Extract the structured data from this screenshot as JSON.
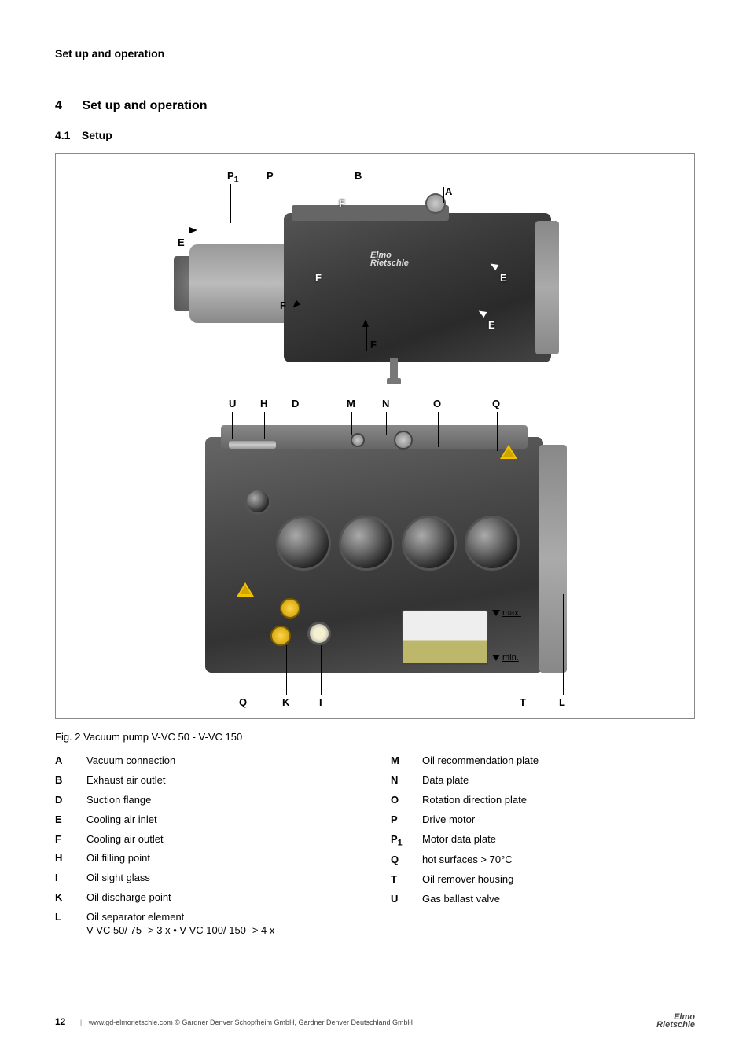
{
  "page": {
    "running_head": "Set up and operation",
    "section_number": "4",
    "section_title": "Set up and operation",
    "subsection_number": "4.1",
    "subsection_title": "Setup",
    "figure_caption": "Fig. 2   Vacuum pump  V-VC 50 - V-VC 150",
    "page_number": "12",
    "footer_url": "www.gd-elmorietschle.com",
    "footer_copyright": "© Gardner Denver Schopfheim GmbH, Gardner Denver Deutschland GmbH",
    "brand_top": "Elmo",
    "brand_bottom": "Rietschle"
  },
  "figure": {
    "top_labels": {
      "P1": "P",
      "P1_sub": "1",
      "P": "P",
      "B": "B",
      "A": "A",
      "E": "E",
      "F": "F",
      "E2": "E",
      "E3": "E",
      "F2": "F",
      "F3": "F",
      "F4": "F"
    },
    "bottom_labels_top": [
      "U",
      "H",
      "D",
      "M",
      "N",
      "O",
      "Q"
    ],
    "bottom_labels_bot": [
      "Q",
      "K",
      "I",
      "T",
      "L"
    ],
    "max_label": "max.",
    "min_label": "min."
  },
  "legend_left": [
    {
      "k": "A",
      "d": "Vacuum connection"
    },
    {
      "k": "B",
      "d": "Exhaust air outlet"
    },
    {
      "k": "D",
      "d": "Suction flange"
    },
    {
      "k": "E",
      "d": "Cooling air inlet"
    },
    {
      "k": "F",
      "d": "Cooling air outlet"
    },
    {
      "k": "H",
      "d": "Oil filling point"
    },
    {
      "k": "I",
      "d": "Oil sight glass"
    },
    {
      "k": "K",
      "d": "Oil discharge point"
    },
    {
      "k": "L",
      "d": "Oil separator element\nV-VC 50/ 75 -> 3 x   •   V-VC 100/ 150 -> 4 x"
    }
  ],
  "legend_right": [
    {
      "k": "M",
      "d": "Oil recommendation plate"
    },
    {
      "k": "N",
      "d": "Data plate"
    },
    {
      "k": "O",
      "d": "Rotation direction plate"
    },
    {
      "k": "P",
      "d": "Drive motor"
    },
    {
      "k": "P1",
      "sub": "1",
      "d": "Motor data plate"
    },
    {
      "k": "Q",
      "d": "hot surfaces > 70°C"
    },
    {
      "k": "T",
      "d": "Oil remover housing"
    },
    {
      "k": "U",
      "d": "Gas ballast valve"
    }
  ],
  "colors": {
    "text": "#000000",
    "border": "#888888",
    "bg": "#ffffff"
  }
}
